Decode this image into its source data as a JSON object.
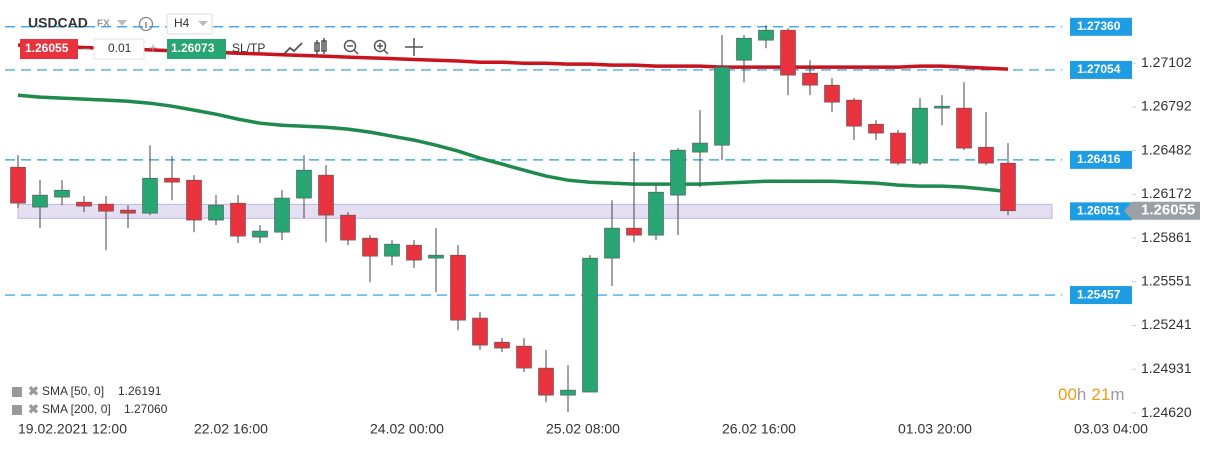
{
  "toolbar": {
    "symbol": "USDCAD",
    "market": "FX",
    "interval": "H4",
    "bid": "1.26055",
    "lot": "0.01",
    "ask": "1.26073",
    "sltp": "SL/TP",
    "minus": "–",
    "plus": "+"
  },
  "countdown": {
    "hours": "00",
    "h": "h",
    "minutes": "21",
    "m": "m"
  },
  "chart_data": {
    "type": "candlestick",
    "categories": [
      "19.02.2021 12:00",
      null,
      null,
      null,
      null,
      null,
      null,
      null,
      "22.02 16:00",
      null,
      null,
      null,
      null,
      null,
      null,
      null,
      "24.02 00:00",
      null,
      null,
      null,
      null,
      null,
      null,
      null,
      "25.02 08:00",
      null,
      null,
      null,
      null,
      null,
      null,
      null,
      "26.02 16:00",
      null,
      null,
      null,
      null,
      null,
      null,
      null,
      "01.03 20:00",
      null,
      null,
      null,
      null,
      null,
      null,
      null,
      "03.03 04:00"
    ],
    "open": [
      1.26364,
      1.26081,
      1.26152,
      1.26116,
      1.26102,
      1.2606,
      1.26038,
      1.26286,
      1.26272,
      1.25989,
      1.26109,
      1.25868,
      1.25903,
      1.26145,
      1.26308,
      1.26024,
      1.25861,
      1.25733,
      1.25811,
      1.25719,
      1.2574,
      1.25294,
      1.25123,
      1.25095,
      1.24939,
      1.24747,
      1.24769,
      1.25719,
      1.25932,
      1.25882,
      1.26166,
      1.26471,
      1.2652,
      1.27123,
      1.27265,
      1.27336,
      1.27031,
      1.26946,
      1.2684,
      1.26669,
      1.26606,
      1.26393,
      1.26783,
      1.26783,
      1.26506,
      1.26393,
      null,
      null,
      null
    ],
    "high": [
      1.2645,
      1.26272,
      1.26272,
      1.26159,
      1.26159,
      1.26095,
      1.2652,
      1.26442,
      1.26308,
      1.26166,
      1.26166,
      1.25953,
      1.26201,
      1.2645,
      1.26379,
      1.26045,
      1.25882,
      1.25847,
      1.25847,
      1.25932,
      1.25811,
      1.25336,
      1.25152,
      1.25152,
      1.25067,
      1.2496,
      1.2574,
      1.2613,
      1.26471,
      1.26237,
      1.26499,
      1.26769,
      1.27301,
      1.27301,
      1.27371,
      1.2735,
      1.27123,
      1.26996,
      1.26854,
      1.26698,
      1.26627,
      1.26854,
      1.26875,
      1.26967,
      1.26755,
      1.26535,
      null,
      null,
      null
    ],
    "low": [
      1.26074,
      1.25932,
      1.26095,
      1.26045,
      1.25776,
      1.25932,
      1.26024,
      1.2613,
      1.25903,
      1.25953,
      1.25826,
      1.25826,
      1.25847,
      1.26003,
      1.25833,
      1.25811,
      1.25549,
      1.25669,
      1.25648,
      1.25478,
      1.25208,
      1.25067,
      1.25052,
      1.24911,
      1.24698,
      1.24627,
      1.24769,
      1.25521,
      1.25833,
      1.25847,
      1.25882,
      1.26223,
      1.26414,
      1.26967,
      1.27208,
      1.26875,
      1.26875,
      1.26755,
      1.26556,
      1.26556,
      1.26379,
      1.26379,
      1.26662,
      1.26485,
      1.26379,
      1.26024,
      null,
      null,
      null
    ],
    "close": [
      1.26109,
      1.26166,
      1.26201,
      1.26088,
      1.26052,
      1.26038,
      1.26286,
      1.26258,
      1.25989,
      1.26095,
      1.25875,
      1.25911,
      1.26145,
      1.26343,
      1.26024,
      1.25847,
      1.25733,
      1.25818,
      1.25705,
      1.2574,
      1.25279,
      1.25102,
      1.25081,
      1.24939,
      1.24747,
      1.24783,
      1.25719,
      1.25932,
      1.25882,
      1.26187,
      1.26485,
      1.26535,
      1.27074,
      1.27279,
      1.27336,
      1.27017,
      1.26946,
      1.26825,
      1.26655,
      1.26606,
      1.26393,
      1.26783,
      1.26797,
      1.26499,
      1.26393,
      1.26055,
      null,
      null,
      null
    ],
    "up_color": "#27a572",
    "down_color": "#e8333f",
    "series": [
      {
        "name": "SMA [50, 0]",
        "color": "#1e8a4c",
        "values": [
          1.26875,
          1.26861,
          1.26854,
          1.26847,
          1.2684,
          1.26832,
          1.26818,
          1.26797,
          1.26769,
          1.2674,
          1.26705,
          1.26676,
          1.26662,
          1.26655,
          1.26648,
          1.26634,
          1.26613,
          1.26584,
          1.26556,
          1.2652,
          1.26478,
          1.26428,
          1.26386,
          1.26343,
          1.26301,
          1.26272,
          1.26258,
          1.26251,
          1.26244,
          1.26244,
          1.26244,
          1.26244,
          1.26251,
          1.26258,
          1.26265,
          1.26265,
          1.26265,
          1.26265,
          1.26258,
          1.26251,
          1.26237,
          1.2623,
          1.2623,
          1.26223,
          1.26208,
          1.26191,
          null,
          null,
          null
        ]
      },
      {
        "name": "SMA [200, 0]",
        "color": "#c8141e",
        "values": [
          1.2723,
          1.27224,
          1.27219,
          1.27213,
          1.27207,
          1.27202,
          1.27196,
          1.2719,
          1.27185,
          1.27179,
          1.27173,
          1.27168,
          1.27162,
          1.27156,
          1.27151,
          1.27145,
          1.27139,
          1.27134,
          1.27128,
          1.27122,
          1.27117,
          1.27109,
          1.27109,
          1.27102,
          1.27102,
          1.27095,
          1.27095,
          1.27088,
          1.27088,
          1.27081,
          1.27081,
          1.27081,
          1.27074,
          1.27074,
          1.27074,
          1.27074,
          1.27074,
          1.27074,
          1.27074,
          1.27074,
          1.27074,
          1.27081,
          1.27081,
          1.27074,
          1.27067,
          1.2706,
          null,
          null,
          null
        ]
      }
    ],
    "legend_values": [
      "1.26191",
      "1.27060"
    ],
    "ylim": [
      1.245,
      1.2755
    ],
    "yticks": [
      1.27102,
      1.26792,
      1.26482,
      1.26172,
      1.25861,
      1.25551,
      1.25241,
      1.24931,
      {
        "value": 1.2462,
        "label": "1.24620"
      }
    ],
    "levels": [
      {
        "value": 1.2736,
        "label": "1.27360"
      },
      1.27054,
      1.26416,
      1.25457
    ],
    "band": 1.26051,
    "price": 1.26055,
    "level_color": "#1f9de3"
  }
}
